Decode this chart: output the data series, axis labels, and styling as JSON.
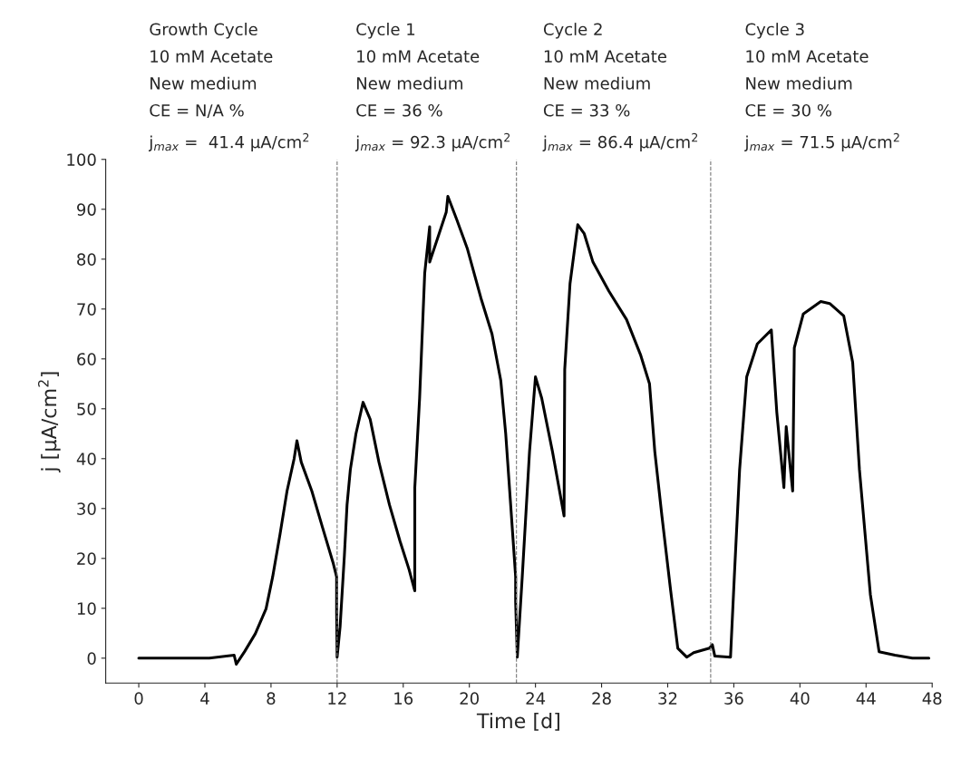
{
  "chart_data": {
    "type": "line",
    "xlabel": "Time [d]",
    "ylabel": "j [μA/cm$^{2}$]",
    "xlim": [
      -2,
      48
    ],
    "ylim": [
      -5,
      100
    ],
    "xticks": [
      0,
      4,
      8,
      12,
      16,
      20,
      24,
      28,
      32,
      36,
      40,
      44,
      48
    ],
    "yticks": [
      0,
      10,
      20,
      30,
      40,
      50,
      60,
      70,
      80,
      90,
      100
    ],
    "grid": false,
    "legend": false,
    "marker": "none",
    "line_style": "solid",
    "series": [
      {
        "color": "#000000",
        "x": [
          0,
          4.27,
          5.77,
          5.9,
          6.4,
          7.05,
          7.7,
          8.1,
          8.55,
          8.97,
          9.4,
          9.57,
          9.83,
          10.47,
          11.1,
          11.75,
          11.97,
          11.97,
          12.0,
          12.18,
          12.44,
          12.6,
          12.8,
          13.14,
          13.57,
          14.0,
          14.53,
          15.17,
          15.8,
          16.35,
          16.7,
          16.7,
          16.99,
          17.3,
          17.6,
          17.6,
          18.6,
          18.7,
          19.23,
          19.87,
          20.7,
          21.37,
          21.9,
          22.2,
          22.5,
          22.8,
          22.8,
          22.9,
          23.2,
          23.64,
          24.0,
          24.38,
          25.03,
          25.73,
          25.77,
          26.09,
          26.56,
          26.95,
          27.48,
          28.44,
          29.51,
          30.37,
          30.9,
          31.22,
          31.65,
          32.18,
          32.61,
          33.15,
          33.57,
          34.53,
          34.7,
          34.85,
          35.8,
          36.03,
          36.35,
          36.78,
          37.42,
          38.27,
          38.6,
          39.03,
          39.17,
          39.56,
          39.66,
          40.2,
          41.26,
          41.8,
          42.65,
          43.19,
          43.6,
          44.26,
          44.79,
          45.75,
          46.8,
          47.8
        ],
        "values": [
          0,
          0,
          0.6,
          -1.2,
          1.3,
          4.9,
          9.9,
          16.3,
          24.9,
          33.5,
          40,
          43.6,
          39.3,
          33.5,
          26.4,
          19.2,
          16.3,
          9.2,
          0.2,
          6.3,
          20.6,
          30.7,
          37.8,
          45,
          51.3,
          47.9,
          39.3,
          30.7,
          23.5,
          17.8,
          13.5,
          34.2,
          52.1,
          77.2,
          86.5,
          79.4,
          89.4,
          92.6,
          88,
          82.2,
          72.2,
          65,
          55.7,
          45,
          30.7,
          16.3,
          11.3,
          0.2,
          16.3,
          41.4,
          56.4,
          52.1,
          41.4,
          28.5,
          57.9,
          75.1,
          86.9,
          85.1,
          79.4,
          73.6,
          67.9,
          60.7,
          55,
          41.4,
          28.5,
          13.5,
          2,
          0.2,
          1.1,
          2,
          2.7,
          0.4,
          0.2,
          16.3,
          37.8,
          56.4,
          63,
          65.8,
          49.3,
          34.2,
          46.4,
          33.5,
          62.2,
          69,
          71.5,
          71.1,
          68.6,
          59.3,
          37.8,
          12.8,
          1.3,
          0.6,
          0,
          0
        ]
      }
    ],
    "ref_lines": [
      {
        "axis": "x",
        "value": 12,
        "color": "#777777",
        "line_style": "dashed"
      },
      {
        "axis": "x",
        "value": 22.85,
        "color": "#777777",
        "line_style": "dashed"
      },
      {
        "axis": "x",
        "value": 34.6,
        "color": "#777777",
        "line_style": "dashed"
      }
    ],
    "annotations": [
      "Growth Cycle\n10 mM Acetate\nNew medium\nCE = N/A %\nj$_{max}$ =  41.4 μA/cm$^{2}$",
      "Cycle 1\n10 mM Acetate\nNew medium\nCE = 36 %\nj$_{max}$ = 92.3 μA/cm$^{2}$",
      "Cycle 2\n10 mM Acetate\nNew medium\nCE = 33 %\nj$_{max}$ = 86.4 μA/cm$^{2}$",
      "Cycle 3\n10 mM Acetate\nNew medium\nCE = 30 %\nj$_{max}$ = 71.5 μA/cm$^{2}$"
    ]
  }
}
